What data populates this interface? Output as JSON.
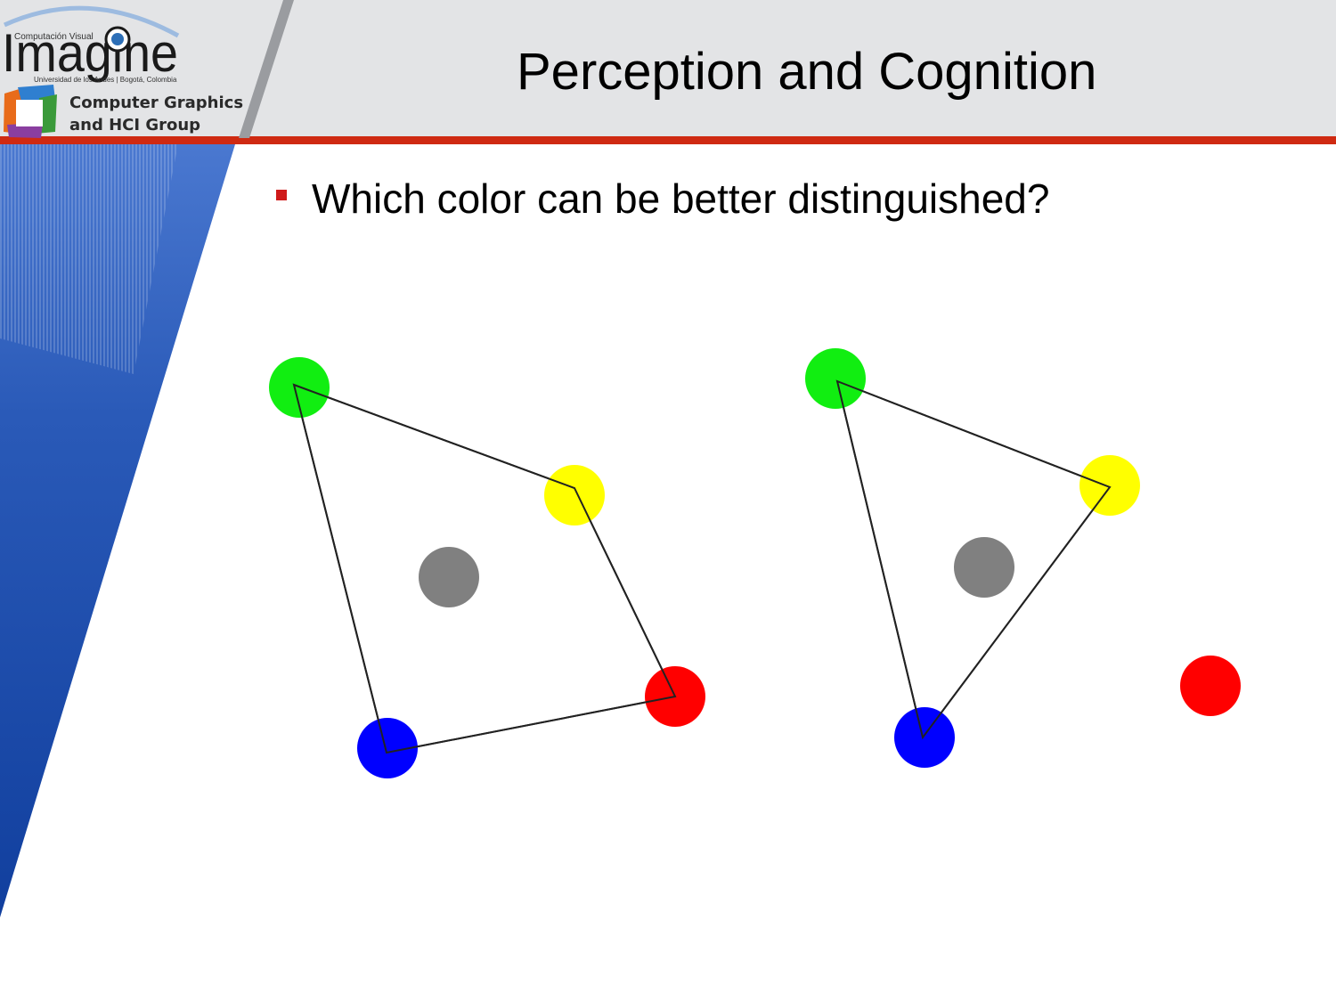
{
  "slide": {
    "title": "Perception and Cognition",
    "bullet": "Which color can be better distinguished?"
  },
  "logo": {
    "tagline_top": "Computación Visual",
    "wordmark": "Imagine",
    "affiliation": "Universidad de los Andes | Bogotá, Colombia",
    "group_line1": "Computer Graphics",
    "group_line2": "and HCI Group"
  },
  "colors": {
    "header_band": "#e3e4e6",
    "accent_rule": "#cf2a12",
    "bullet_marker": "#cf1a1a",
    "side_panel": "#1a47a8",
    "green": "#11ee11",
    "yellow": "#ffff00",
    "gray": "#808080",
    "red": "#ff0000",
    "blue": "#0000ff"
  }
}
